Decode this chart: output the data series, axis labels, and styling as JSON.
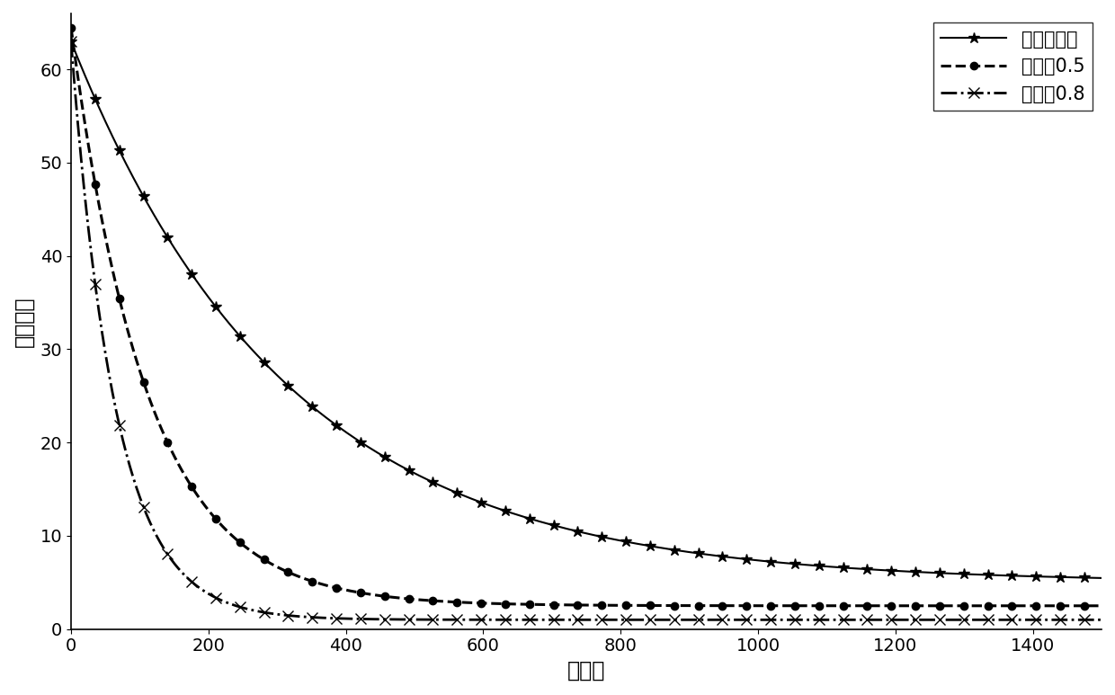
{
  "xlabel": "符号数",
  "ylabel": "均方误差",
  "xlim": [
    0,
    1500
  ],
  "ylim": [
    0,
    66
  ],
  "xticks": [
    0,
    200,
    400,
    600,
    800,
    1000,
    1200,
    1400
  ],
  "yticks": [
    0,
    10,
    20,
    30,
    40,
    50,
    60
  ],
  "background_color": "#ffffff",
  "line_color": "#000000",
  "series": [
    {
      "label": "无动量因子",
      "linestyle": "-",
      "marker": "*",
      "markersize": 9,
      "linewidth": 1.5,
      "start": 63,
      "decay": 0.0032,
      "asymptote": 5.0,
      "markevery": 7
    },
    {
      "label": "学习率0.5",
      "linestyle": "--",
      "marker": "o",
      "markersize": 6,
      "linewidth": 2.2,
      "start": 64.5,
      "decay": 0.009,
      "asymptote": 2.5,
      "markevery": 7
    },
    {
      "label": "学习率0.8",
      "linestyle": "-.",
      "marker": "x",
      "markersize": 8,
      "linewidth": 2.0,
      "start": 63,
      "decay": 0.0155,
      "asymptote": 1.0,
      "markevery": 7
    }
  ],
  "legend_loc": "upper right",
  "legend_fontsize": 15,
  "axis_fontsize": 17,
  "tick_fontsize": 14,
  "n_points": 300,
  "x_max": 1500
}
